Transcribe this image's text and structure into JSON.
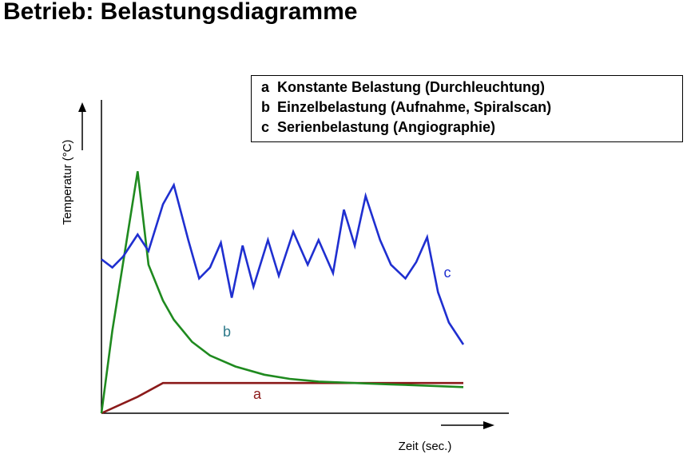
{
  "page": {
    "title": "Betrieb: Belastungsdiagramme"
  },
  "legend": [
    {
      "key": "a",
      "text": "Konstante Belastung (Durchleuchtung)"
    },
    {
      "key": "b",
      "text": "Einzelbelastung (Aufnahme, Spiralscan)"
    },
    {
      "key": "c",
      "text": "Serienbelastung (Angiographie)"
    }
  ],
  "colors": {
    "a": "#8b1a1a",
    "b": "#1f8a1f",
    "c": "#1f2fd0",
    "axis": "#000000"
  },
  "chart_data": {
    "type": "line",
    "title": "Betrieb: Belastungsdiagramme",
    "xlabel": "Zeit (sec.)",
    "ylabel": "Temperatur (°C)",
    "xlim": [
      0,
      100
    ],
    "ylim": [
      0,
      100
    ],
    "grid": false,
    "legend_position": "top-right",
    "series": [
      {
        "name": "a",
        "label": "a",
        "x": [
          0,
          10,
          17,
          100
        ],
        "y": [
          0,
          6,
          11,
          11
        ]
      },
      {
        "name": "b",
        "label": "b",
        "x": [
          0,
          3,
          10,
          13,
          17,
          20,
          25,
          30,
          37,
          45,
          52,
          60,
          70,
          80,
          90,
          100
        ],
        "y": [
          0,
          30,
          88,
          54,
          41,
          34,
          26,
          21,
          17,
          14,
          12.5,
          11.5,
          11,
          10.5,
          10,
          9.5
        ]
      },
      {
        "name": "c",
        "label": "c",
        "x": [
          0,
          3,
          6,
          10,
          13,
          17,
          20,
          24,
          27,
          30,
          33,
          36,
          39,
          42,
          46,
          49,
          53,
          57,
          60,
          64,
          67,
          70,
          73,
          77,
          80,
          84,
          87,
          90,
          93,
          96,
          100
        ],
        "y": [
          56,
          53,
          57,
          65,
          59,
          76,
          83,
          63,
          49,
          53,
          62,
          42,
          61,
          46,
          63,
          50,
          66,
          54,
          63,
          51,
          74,
          61,
          79,
          63,
          54,
          49,
          55,
          64,
          44,
          33,
          25
        ]
      }
    ]
  }
}
